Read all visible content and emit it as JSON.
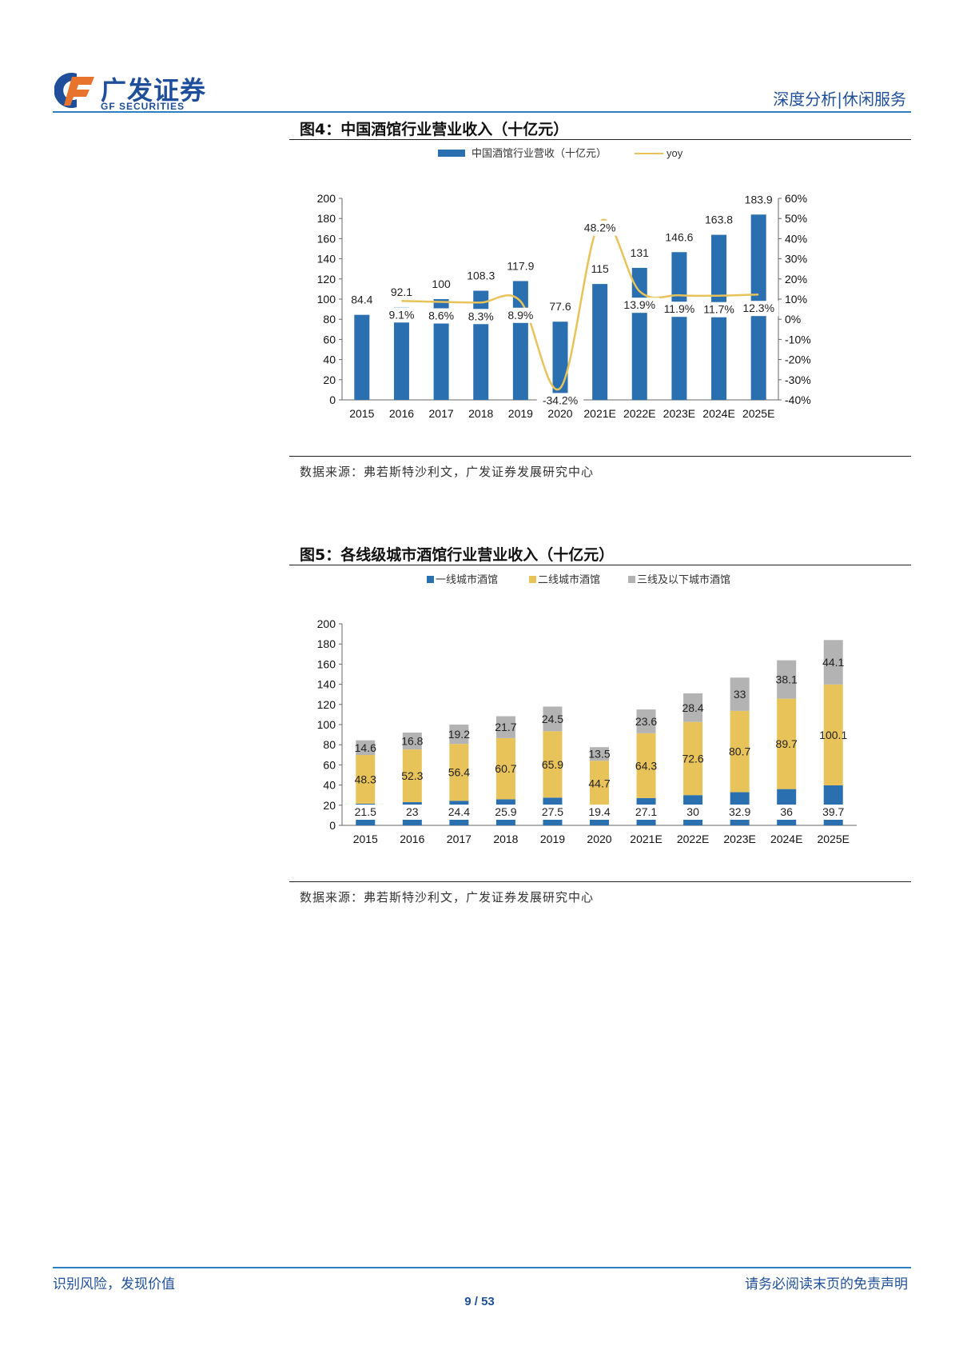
{
  "header": {
    "brand_cn": "广发证券",
    "brand_en": "GF SECURITIES",
    "report_type": "深度分析|休闲服务"
  },
  "figures": [
    {
      "title": "图4：中国酒馆行业营业收入（十亿元）",
      "source": "数据来源：弗若斯特沙利文，广发证券发展研究中心"
    },
    {
      "title": "图5：各线级城市酒馆行业营业收入（十亿元）",
      "source": "数据来源：弗若斯特沙利文，广发证券发展研究中心"
    }
  ],
  "chart_data": [
    {
      "type": "bar",
      "title": "中国酒馆行业营业收入（十亿元）",
      "categories": [
        "2015",
        "2016",
        "2017",
        "2018",
        "2019",
        "2020",
        "2021E",
        "2022E",
        "2023E",
        "2024E",
        "2025E"
      ],
      "series": [
        {
          "name": "中国酒馆行业营收（十亿元）",
          "kind": "bar",
          "axis": "left",
          "values": [
            84.4,
            92.1,
            100,
            108.3,
            117.9,
            77.6,
            115,
            131,
            146.6,
            163.8,
            183.9
          ]
        },
        {
          "name": "yoy",
          "kind": "line",
          "axis": "right",
          "values": [
            null,
            9.1,
            8.6,
            8.3,
            8.9,
            -34.2,
            48.2,
            13.9,
            11.9,
            11.7,
            12.3
          ],
          "labels": [
            "",
            "9.1%",
            "8.6%",
            "8.3%",
            "8.9%",
            "-34.2%",
            "48.2%",
            "13.9%",
            "11.9%",
            "11.7%",
            "12.3%"
          ]
        }
      ],
      "ylim": [
        0,
        200
      ],
      "yticks": [
        "0",
        "20",
        "40",
        "60",
        "80",
        "100",
        "120",
        "140",
        "160",
        "180",
        "200"
      ],
      "y2lim": [
        -40,
        60
      ],
      "y2ticks": [
        "-40%",
        "-30%",
        "-20%",
        "-10%",
        "0%",
        "10%",
        "20%",
        "30%",
        "40%",
        "50%",
        "60%"
      ],
      "colors": {
        "bar": "#2a6fb0",
        "line": "#e8c35a"
      },
      "legend": "top-center"
    },
    {
      "type": "bar",
      "stacked": true,
      "title": "各线级城市酒馆行业营业收入（十亿元）",
      "categories": [
        "2015",
        "2016",
        "2017",
        "2018",
        "2019",
        "2020",
        "2021E",
        "2022E",
        "2023E",
        "2024E",
        "2025E"
      ],
      "series": [
        {
          "name": "一线城市酒馆",
          "values": [
            21.5,
            23,
            24.4,
            25.9,
            27.5,
            19.4,
            27.1,
            30,
            32.9,
            36,
            39.7
          ]
        },
        {
          "name": "二线城市酒馆",
          "values": [
            48.3,
            52.3,
            56.4,
            60.7,
            65.9,
            44.7,
            64.3,
            72.6,
            80.7,
            89.7,
            100.1
          ]
        },
        {
          "name": "三线及以下城市酒馆",
          "values": [
            14.6,
            16.8,
            19.2,
            21.7,
            24.5,
            13.5,
            23.6,
            28.4,
            33,
            38.1,
            44.1
          ]
        }
      ],
      "ylim": [
        0,
        200
      ],
      "yticks": [
        "0",
        "20",
        "40",
        "60",
        "80",
        "100",
        "120",
        "140",
        "160",
        "180",
        "200"
      ],
      "colors": {
        "tier1": "#2a6fb0",
        "tier2": "#e8c35a",
        "tier3": "#b3b3b3"
      },
      "legend": "top-center"
    }
  ],
  "footer": {
    "left": "识别风险，发现价值",
    "right": "请务必阅读末页的免责声明",
    "page": "9 / 53"
  }
}
